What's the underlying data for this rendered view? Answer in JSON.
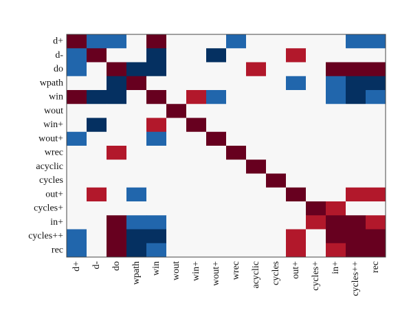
{
  "chart_data": {
    "type": "heatmap",
    "labels": [
      "d+",
      "d-",
      "do",
      "wpath",
      "win",
      "wout",
      "win+",
      "wout+",
      "wrec",
      "acyclic",
      "cycles",
      "out+",
      "cycles+",
      "in+",
      "cycles++",
      "rec"
    ],
    "colors": {
      "0": "#f7f7f7",
      "1": "#2166ac",
      "2": "#053061",
      "-1": "#b2182b",
      "-2": "#67001f"
    },
    "matrix": [
      [
        -2,
        1,
        1,
        0,
        -2,
        0,
        0,
        0,
        1,
        0,
        0,
        0,
        0,
        0,
        1,
        1
      ],
      [
        1,
        -2,
        0,
        0,
        2,
        0,
        0,
        2,
        0,
        0,
        0,
        -1,
        0,
        0,
        0,
        0
      ],
      [
        1,
        0,
        -2,
        2,
        2,
        0,
        0,
        0,
        0,
        -1,
        0,
        0,
        0,
        -2,
        -2,
        -2
      ],
      [
        0,
        0,
        2,
        -2,
        0,
        0,
        0,
        0,
        0,
        0,
        0,
        1,
        0,
        1,
        2,
        2
      ],
      [
        -2,
        2,
        2,
        0,
        -2,
        0,
        -1,
        1,
        0,
        0,
        0,
        0,
        0,
        1,
        2,
        1
      ],
      [
        0,
        0,
        0,
        0,
        0,
        -2,
        0,
        0,
        0,
        0,
        0,
        0,
        0,
        0,
        0,
        0
      ],
      [
        0,
        2,
        0,
        0,
        -1,
        0,
        -2,
        0,
        0,
        0,
        0,
        0,
        0,
        0,
        0,
        0
      ],
      [
        1,
        0,
        0,
        0,
        1,
        0,
        0,
        -2,
        0,
        0,
        0,
        0,
        0,
        0,
        0,
        0
      ],
      [
        0,
        0,
        -1,
        0,
        0,
        0,
        0,
        0,
        -2,
        0,
        0,
        0,
        0,
        0,
        0,
        0
      ],
      [
        0,
        0,
        0,
        0,
        0,
        0,
        0,
        0,
        0,
        -2,
        0,
        0,
        0,
        0,
        0,
        0
      ],
      [
        0,
        0,
        0,
        0,
        0,
        0,
        0,
        0,
        0,
        0,
        -2,
        0,
        0,
        0,
        0,
        0
      ],
      [
        0,
        -1,
        0,
        1,
        0,
        0,
        0,
        0,
        0,
        0,
        0,
        -2,
        0,
        0,
        -1,
        -1
      ],
      [
        0,
        0,
        0,
        0,
        0,
        0,
        0,
        0,
        0,
        0,
        0,
        0,
        -2,
        -1,
        0,
        0
      ],
      [
        0,
        0,
        -2,
        1,
        1,
        0,
        0,
        0,
        0,
        0,
        0,
        0,
        -1,
        -2,
        -2,
        -1
      ],
      [
        1,
        0,
        -2,
        2,
        2,
        0,
        0,
        0,
        0,
        0,
        0,
        -1,
        0,
        -2,
        -2,
        -2
      ],
      [
        1,
        0,
        -2,
        2,
        1,
        0,
        0,
        0,
        0,
        0,
        0,
        -1,
        0,
        -1,
        -2,
        -2
      ]
    ],
    "legend": "none",
    "grid": false
  }
}
